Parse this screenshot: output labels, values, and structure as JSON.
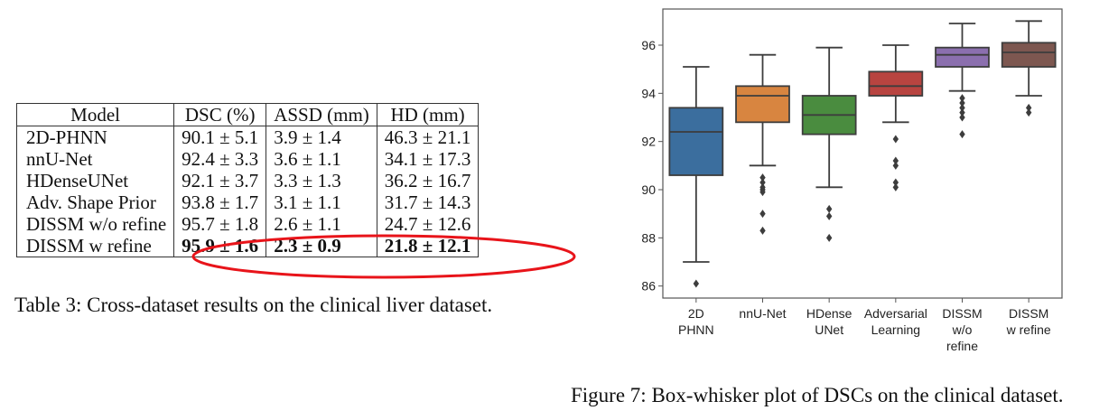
{
  "table": {
    "headers": [
      "Model",
      "DSC (%)",
      "ASSD (mm)",
      "HD (mm)"
    ],
    "rows": [
      {
        "model": "2D-PHNN",
        "dsc": "90.1 ± 5.1",
        "assd": "3.9 ± 1.4",
        "hd": "46.3 ± 21.1",
        "bold": false
      },
      {
        "model": "nnU-Net",
        "dsc": "92.4 ± 3.3",
        "assd": "3.6 ± 1.1",
        "hd": "34.1 ± 17.3",
        "bold": false
      },
      {
        "model": "HDenseUNet",
        "dsc": "92.1 ± 3.7",
        "assd": "3.3 ± 1.3",
        "hd": "36.2 ± 16.7",
        "bold": false
      },
      {
        "model": "Adv. Shape Prior",
        "dsc": "93.8 ± 1.7",
        "assd": "3.1 ± 1.1",
        "hd": "31.7 ± 14.3",
        "bold": false
      },
      {
        "model": "DISSM w/o refine",
        "dsc": "95.7 ± 1.8",
        "assd": "2.6 ± 1.1",
        "hd": "24.7 ± 12.6",
        "bold": false
      },
      {
        "model": "DISSM w refine",
        "dsc": "95.9 ± 1.6",
        "assd": "2.3 ± 0.9",
        "hd": "21.8 ± 12.1",
        "bold": true
      }
    ],
    "caption": "Table 3: Cross-dataset results on the clinical liver dataset.",
    "highlight_color": "#e8141a"
  },
  "figure": {
    "caption": "Figure 7: Box-whisker plot of DSCs on the clinical dataset."
  },
  "chart_data": {
    "type": "box",
    "title": "",
    "xlabel": "",
    "ylabel": "",
    "ylim": [
      85.5,
      97.5
    ],
    "yticks": [
      86,
      88,
      90,
      92,
      94,
      96
    ],
    "grid": false,
    "categories": [
      [
        "2D",
        "PHNN"
      ],
      [
        "nnU-Net"
      ],
      [
        "HDense",
        "UNet"
      ],
      [
        "Adversarial",
        "Learning"
      ],
      [
        "DISSM",
        "w/o",
        "refine"
      ],
      [
        "DISSM",
        "w refine"
      ]
    ],
    "series": [
      {
        "name": "2D PHNN",
        "color": "#3b6e9e",
        "whisker_low": 87.0,
        "q1": 90.6,
        "median": 92.4,
        "q3": 93.4,
        "whisker_high": 95.1,
        "outliers": [
          86.1
        ]
      },
      {
        "name": "nnU-Net",
        "color": "#d88540",
        "whisker_low": 91.0,
        "q1": 92.8,
        "median": 93.9,
        "q3": 94.3,
        "whisker_high": 95.6,
        "outliers": [
          90.5,
          90.3,
          90.1,
          90.0,
          89.9,
          89.0,
          88.3
        ]
      },
      {
        "name": "HDense UNet",
        "color": "#4a8c3f",
        "whisker_low": 90.1,
        "q1": 92.3,
        "median": 93.1,
        "q3": 93.9,
        "whisker_high": 95.9,
        "outliers": [
          89.2,
          88.9,
          88.0
        ]
      },
      {
        "name": "Adversarial Learning",
        "color": "#b84440",
        "whisker_low": 92.8,
        "q1": 93.9,
        "median": 94.3,
        "q3": 94.9,
        "whisker_high": 96.0,
        "outliers": [
          92.1,
          91.2,
          91.0,
          90.3,
          90.1
        ]
      },
      {
        "name": "DISSM w/o refine",
        "color": "#8b6fae",
        "whisker_low": 94.1,
        "q1": 95.1,
        "median": 95.6,
        "q3": 95.9,
        "whisker_high": 96.9,
        "outliers": [
          93.8,
          93.6,
          93.4,
          93.2,
          93.0,
          92.3
        ]
      },
      {
        "name": "DISSM w refine",
        "color": "#7d5750",
        "whisker_low": 93.9,
        "q1": 95.1,
        "median": 95.7,
        "q3": 96.1,
        "whisker_high": 97.0,
        "outliers": [
          93.4,
          93.2
        ]
      }
    ]
  }
}
